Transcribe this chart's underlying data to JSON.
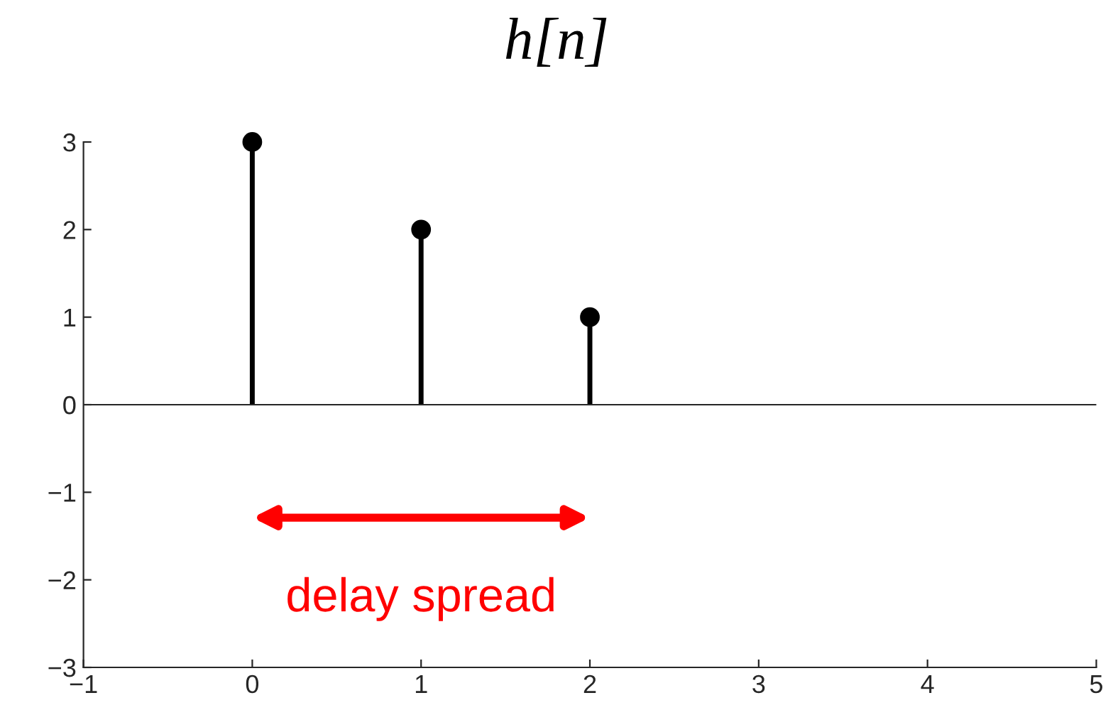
{
  "chart_data": {
    "type": "lollipop",
    "title": "h[n]",
    "x": [
      0,
      1,
      2
    ],
    "series": [
      {
        "color": "#000000",
        "values": [
          3,
          2,
          1
        ]
      }
    ],
    "marker": "circle",
    "grid": false,
    "xlim": [
      -1,
      5
    ],
    "xticks": [
      {
        "value": -1,
        "label": "−1"
      },
      0,
      1,
      2,
      3,
      4,
      5
    ],
    "ylim": [
      -3,
      3
    ],
    "yticks": [
      {
        "value": -3,
        "label": "−3"
      },
      {
        "value": -2,
        "label": "−2"
      },
      {
        "value": -1,
        "label": "−1"
      },
      0,
      1,
      2,
      3
    ],
    "ref_lines": [
      {
        "axis": "y",
        "value": 0,
        "color": "#262626"
      }
    ],
    "annotations": [
      "delay spread"
    ]
  }
}
